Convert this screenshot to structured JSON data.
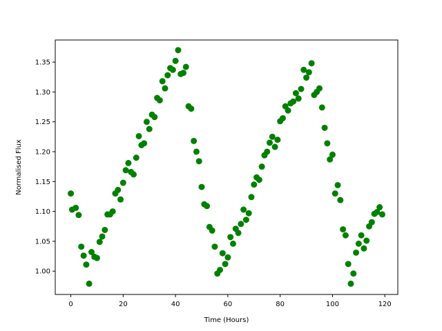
{
  "chart_data": {
    "type": "scatter",
    "title": "",
    "xlabel": "Time (Hours)",
    "ylabel": "Normalised Flux",
    "xlim": [
      -5.95,
      124.95
    ],
    "ylim": [
      0.961,
      1.387
    ],
    "xticks": [
      0,
      20,
      40,
      60,
      80,
      100,
      120
    ],
    "xtick_labels": [
      "0",
      "20",
      "40",
      "60",
      "80",
      "100",
      "120"
    ],
    "yticks": [
      1.0,
      1.05,
      1.1,
      1.15,
      1.2,
      1.25,
      1.3,
      1.35
    ],
    "ytick_labels": [
      "1.00",
      "1.05",
      "1.10",
      "1.15",
      "1.20",
      "1.25",
      "1.30",
      "1.35"
    ],
    "grid": false,
    "marker_color": "#008000",
    "series": [
      {
        "points": [
          [
            0,
            1.13
          ],
          [
            0.5,
            1.103
          ],
          [
            1.9,
            1.106
          ],
          [
            3.0,
            1.094
          ],
          [
            4.0,
            1.041
          ],
          [
            4.9,
            1.026
          ],
          [
            5.9,
            1.011
          ],
          [
            7.0,
            0.979
          ],
          [
            7.9,
            1.032
          ],
          [
            9.0,
            1.024
          ],
          [
            10.0,
            1.022
          ],
          [
            11.0,
            1.049
          ],
          [
            12.0,
            1.058
          ],
          [
            13.0,
            1.069
          ],
          [
            14.0,
            1.095
          ],
          [
            15.0,
            1.095
          ],
          [
            16.0,
            1.1
          ],
          [
            17.0,
            1.13
          ],
          [
            18.0,
            1.136
          ],
          [
            19.0,
            1.12
          ],
          [
            20.0,
            1.148
          ],
          [
            21.0,
            1.169
          ],
          [
            22.0,
            1.181
          ],
          [
            23.0,
            1.166
          ],
          [
            24.0,
            1.162
          ],
          [
            25.0,
            1.19
          ],
          [
            26.0,
            1.226
          ],
          [
            27.0,
            1.211
          ],
          [
            28.0,
            1.214
          ],
          [
            29.0,
            1.25
          ],
          [
            30.0,
            1.238
          ],
          [
            31.0,
            1.262
          ],
          [
            32.0,
            1.258
          ],
          [
            33.0,
            1.29
          ],
          [
            34.0,
            1.286
          ],
          [
            35.0,
            1.318
          ],
          [
            36.0,
            1.306
          ],
          [
            37.0,
            1.328
          ],
          [
            38.0,
            1.34
          ],
          [
            39.0,
            1.337
          ],
          [
            40.0,
            1.352
          ],
          [
            41.0,
            1.37
          ],
          [
            42.0,
            1.33
          ],
          [
            43.0,
            1.332
          ],
          [
            44.0,
            1.342
          ],
          [
            45.0,
            1.276
          ],
          [
            46.0,
            1.272
          ],
          [
            47.0,
            1.218
          ],
          [
            48.0,
            1.2
          ],
          [
            49.0,
            1.184
          ],
          [
            50.0,
            1.141
          ],
          [
            51.0,
            1.112
          ],
          [
            52.0,
            1.109
          ],
          [
            53.0,
            1.074
          ],
          [
            54.0,
            1.068
          ],
          [
            55.0,
            1.041
          ],
          [
            56.0,
            0.996
          ],
          [
            57.0,
            1.002
          ],
          [
            58.0,
            1.03
          ],
          [
            59.0,
            1.012
          ],
          [
            60.0,
            1.023
          ],
          [
            61.0,
            1.057
          ],
          [
            62.0,
            1.046
          ],
          [
            63.0,
            1.071
          ],
          [
            64.0,
            1.064
          ],
          [
            65.0,
            1.079
          ],
          [
            66.0,
            1.103
          ],
          [
            67.0,
            1.086
          ],
          [
            68.0,
            1.097
          ],
          [
            69.0,
            1.124
          ],
          [
            70.0,
            1.145
          ],
          [
            71.0,
            1.157
          ],
          [
            72.0,
            1.153
          ],
          [
            73.0,
            1.175
          ],
          [
            74.0,
            1.194
          ],
          [
            75.0,
            1.2
          ],
          [
            76.0,
            1.215
          ],
          [
            77.0,
            1.225
          ],
          [
            78.0,
            1.208
          ],
          [
            79.0,
            1.22
          ],
          [
            80.0,
            1.251
          ],
          [
            81.0,
            1.256
          ],
          [
            82.0,
            1.276
          ],
          [
            83.0,
            1.269
          ],
          [
            84.0,
            1.281
          ],
          [
            85.0,
            1.284
          ],
          [
            86.0,
            1.298
          ],
          [
            87.0,
            1.289
          ],
          [
            88.0,
            1.305
          ],
          [
            89.0,
            1.337
          ],
          [
            90.0,
            1.324
          ],
          [
            91.0,
            1.333
          ],
          [
            92.0,
            1.348
          ],
          [
            93.0,
            1.295
          ],
          [
            94.0,
            1.3
          ],
          [
            95.0,
            1.306
          ],
          [
            96.0,
            1.274
          ],
          [
            97.0,
            1.24
          ],
          [
            98.0,
            1.214
          ],
          [
            99.0,
            1.187
          ],
          [
            100.0,
            1.195
          ],
          [
            101.0,
            1.13
          ],
          [
            102.0,
            1.144
          ],
          [
            103.0,
            1.119
          ],
          [
            104.0,
            1.07
          ],
          [
            105.0,
            1.06
          ],
          [
            106.0,
            1.012
          ],
          [
            107.0,
            0.979
          ],
          [
            108.0,
            0.996
          ],
          [
            109.0,
            1.031
          ],
          [
            110.0,
            1.046
          ],
          [
            111.0,
            1.06
          ],
          [
            112.0,
            1.038
          ],
          [
            113.0,
            1.051
          ],
          [
            114.0,
            1.075
          ],
          [
            115.0,
            1.082
          ],
          [
            116.0,
            1.096
          ],
          [
            117.0,
            1.099
          ],
          [
            118.0,
            1.107
          ],
          [
            119.0,
            1.095
          ]
        ]
      }
    ]
  }
}
